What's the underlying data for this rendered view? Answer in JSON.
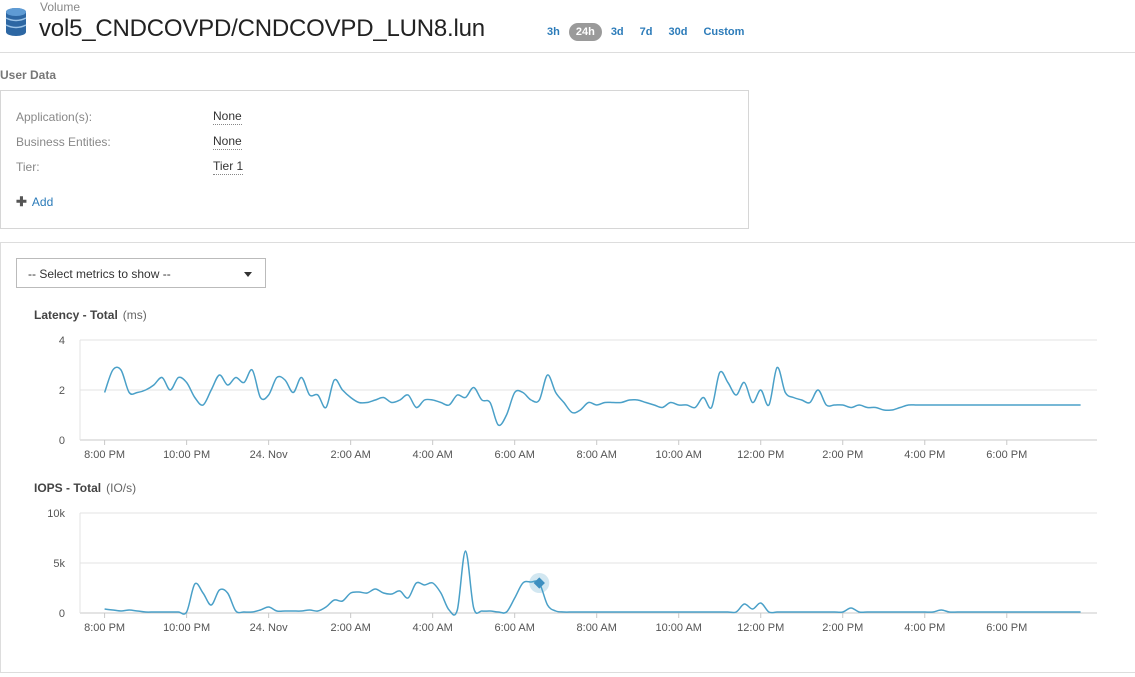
{
  "header": {
    "object_type": "Volume",
    "object_name": "vol5_CNDCOVPD/CNDCOVPD_LUN8.lun",
    "ranges": [
      {
        "label": "3h",
        "active": false
      },
      {
        "label": "24h",
        "active": true
      },
      {
        "label": "3d",
        "active": false
      },
      {
        "label": "7d",
        "active": false
      },
      {
        "label": "30d",
        "active": false
      },
      {
        "label": "Custom",
        "active": false
      }
    ]
  },
  "user_data": {
    "title": "User Data",
    "fields": [
      {
        "label": "Application(s):",
        "value": "None"
      },
      {
        "label": "Business Entities:",
        "value": "None"
      },
      {
        "label": "Tier:",
        "value": "Tier 1"
      }
    ],
    "add_label": "Add"
  },
  "metrics": {
    "select_placeholder": "-- Select metrics to show --"
  },
  "colors": {
    "line": "#4aa0c8",
    "accent": "#2b7bb9",
    "grid": "#e3e3e3"
  },
  "chart_data": [
    {
      "type": "line",
      "title": "Latency - Total",
      "unit": "(ms)",
      "yticks": [
        "0",
        "2",
        "4"
      ],
      "ylim": [
        0,
        4
      ],
      "xticks": [
        "8:00 PM",
        "10:00 PM",
        "24. Nov",
        "2:00 AM",
        "4:00 AM",
        "6:00 AM",
        "8:00 AM",
        "10:00 AM",
        "12:00 PM",
        "2:00 PM",
        "4:00 PM",
        "6:00 PM"
      ],
      "x": [
        0,
        0.2,
        0.4,
        0.6,
        0.8,
        1,
        1.2,
        1.4,
        1.6,
        1.8,
        2,
        2.2,
        2.4,
        2.6,
        2.8,
        3,
        3.2,
        3.4,
        3.6,
        3.8,
        4,
        4.2,
        4.4,
        4.6,
        4.8,
        5,
        5.2,
        5.4,
        5.6,
        5.8,
        6,
        6.2,
        6.4,
        6.6,
        6.8,
        7,
        7.2,
        7.4,
        7.6,
        7.8,
        8,
        8.2,
        8.4,
        8.6,
        8.8,
        9,
        9.2,
        9.4,
        9.6,
        9.8,
        10,
        10.2,
        10.4,
        10.6,
        10.8,
        11,
        11.2,
        11.4,
        11.6,
        11.8,
        12,
        12.2,
        12.4,
        12.6,
        12.8,
        13,
        13.2,
        13.4,
        13.6,
        13.8,
        14,
        14.2,
        14.4,
        14.6,
        14.8,
        15,
        15.2,
        15.4,
        15.6,
        15.8,
        16,
        16.2,
        16.4,
        16.6,
        16.8,
        17,
        17.2,
        17.4,
        17.6,
        17.8,
        18,
        18.2,
        18.4,
        18.6,
        18.8,
        19,
        19.2,
        19.4,
        19.6,
        19.8,
        20,
        20.2,
        20.4,
        20.6,
        20.8,
        21,
        21.2,
        21.4,
        21.6,
        21.8,
        22,
        22.2,
        22.4,
        22.6,
        22.8,
        23,
        23.2,
        23.4,
        23.6,
        23.8
      ],
      "series": [
        {
          "values": [
            1.9,
            2.8,
            2.8,
            1.9,
            1.9,
            2.0,
            2.2,
            2.5,
            2.0,
            2.5,
            2.3,
            1.7,
            1.4,
            2.0,
            2.6,
            2.2,
            2.5,
            2.3,
            2.8,
            1.7,
            1.8,
            2.5,
            2.4,
            1.9,
            2.5,
            1.8,
            1.8,
            1.3,
            2.4,
            2.0,
            1.7,
            1.5,
            1.5,
            1.6,
            1.7,
            1.5,
            1.6,
            1.8,
            1.3,
            1.6,
            1.6,
            1.5,
            1.4,
            1.8,
            1.7,
            2.1,
            1.6,
            1.5,
            0.6,
            1.0,
            1.9,
            1.9,
            1.6,
            1.6,
            2.6,
            1.9,
            1.5,
            1.1,
            1.2,
            1.5,
            1.4,
            1.5,
            1.5,
            1.5,
            1.6,
            1.6,
            1.5,
            1.4,
            1.3,
            1.5,
            1.4,
            1.4,
            1.3,
            1.7,
            1.3,
            2.7,
            2.3,
            1.8,
            2.3,
            1.5,
            2.0,
            1.4,
            2.9,
            1.9,
            1.7,
            1.6,
            1.5,
            2.0,
            1.4,
            1.4,
            1.4,
            1.3,
            1.4,
            1.3,
            1.3,
            1.2,
            1.2,
            1.3,
            1.4,
            1.4,
            1.4,
            1.4,
            1.4,
            1.4,
            1.4,
            1.4,
            1.4,
            1.4,
            1.4,
            1.4,
            1.4,
            1.4,
            1.4,
            1.4,
            1.4,
            1.4,
            1.4,
            1.4,
            1.4,
            1.4
          ]
        }
      ]
    },
    {
      "type": "line",
      "title": "IOPS - Total",
      "unit": "(IO/s)",
      "yticks": [
        "0",
        "5k",
        "10k"
      ],
      "ylim": [
        0,
        10000
      ],
      "xticks": [
        "8:00 PM",
        "10:00 PM",
        "24. Nov",
        "2:00 AM",
        "4:00 AM",
        "6:00 AM",
        "8:00 AM",
        "10:00 AM",
        "12:00 PM",
        "2:00 PM",
        "4:00 PM",
        "6:00 PM"
      ],
      "x": [
        0,
        0.2,
        0.4,
        0.6,
        0.8,
        1,
        1.2,
        1.4,
        1.6,
        1.8,
        2,
        2.2,
        2.4,
        2.6,
        2.8,
        3,
        3.2,
        3.4,
        3.6,
        3.8,
        4,
        4.2,
        4.4,
        4.6,
        4.8,
        5,
        5.2,
        5.4,
        5.6,
        5.8,
        6,
        6.2,
        6.4,
        6.6,
        6.8,
        7,
        7.2,
        7.4,
        7.6,
        7.8,
        8,
        8.2,
        8.4,
        8.6,
        8.8,
        9,
        9.2,
        9.4,
        9.6,
        9.8,
        10,
        10.2,
        10.4,
        10.6,
        10.8,
        11,
        11.2,
        11.4,
        11.6,
        11.8,
        12,
        12.2,
        12.4,
        12.6,
        12.8,
        13,
        13.2,
        13.4,
        13.6,
        13.8,
        14,
        14.2,
        14.4,
        14.6,
        14.8,
        15,
        15.2,
        15.4,
        15.6,
        15.8,
        16,
        16.2,
        16.4,
        16.6,
        16.8,
        17,
        17.2,
        17.4,
        17.6,
        17.8,
        18,
        18.2,
        18.4,
        18.6,
        18.8,
        19,
        19.2,
        19.4,
        19.6,
        19.8,
        20,
        20.2,
        20.4,
        20.6,
        20.8,
        21,
        21.2,
        21.4,
        21.6,
        21.8,
        22,
        22.2,
        22.4,
        22.6,
        22.8,
        23,
        23.2,
        23.4,
        23.6,
        23.8
      ],
      "series": [
        {
          "values": [
            400,
            300,
            200,
            300,
            200,
            100,
            100,
            100,
            100,
            100,
            100,
            2900,
            2000,
            800,
            2300,
            2000,
            200,
            100,
            100,
            300,
            600,
            200,
            200,
            200,
            200,
            300,
            200,
            600,
            1300,
            1200,
            2000,
            2100,
            2000,
            2400,
            2000,
            1900,
            2200,
            1500,
            3000,
            2800,
            3000,
            2000,
            300,
            300,
            6200,
            500,
            200,
            200,
            100,
            100,
            1500,
            3000,
            3100,
            3000,
            800,
            200,
            100,
            100,
            100,
            100,
            100,
            100,
            100,
            100,
            100,
            100,
            100,
            100,
            100,
            100,
            100,
            100,
            100,
            100,
            100,
            100,
            100,
            100,
            900,
            400,
            1000,
            100,
            100,
            100,
            100,
            100,
            100,
            100,
            100,
            100,
            100,
            500,
            100,
            100,
            100,
            100,
            100,
            100,
            100,
            100,
            100,
            100,
            300,
            100,
            100,
            100,
            100,
            100,
            100,
            100,
            100,
            100,
            100,
            100,
            100,
            100,
            100,
            100,
            100,
            100
          ]
        }
      ],
      "marker": {
        "x": 10.6,
        "value": 3000
      }
    }
  ]
}
